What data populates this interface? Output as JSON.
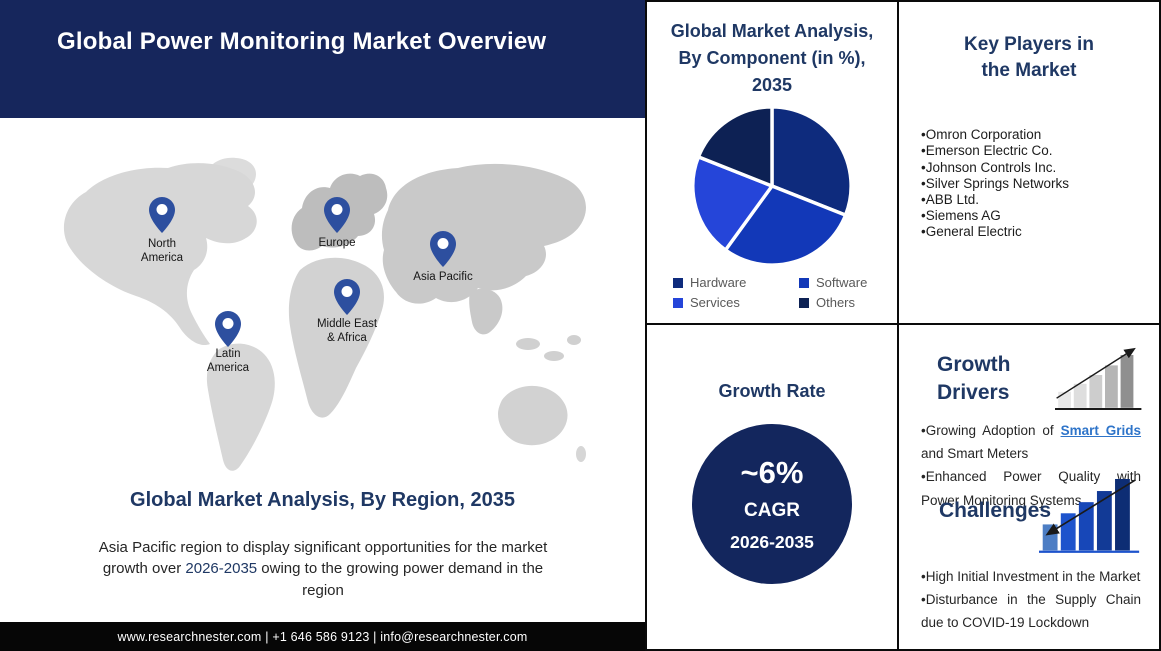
{
  "header": {
    "title": "Global Power Monitoring Market Overview"
  },
  "map": {
    "regions": [
      {
        "lines": [
          "North",
          "America"
        ]
      },
      {
        "lines": [
          "Europe"
        ]
      },
      {
        "lines": [
          "Asia Pacific"
        ]
      },
      {
        "lines": [
          "Middle East",
          "& Africa"
        ]
      },
      {
        "lines": [
          "Latin",
          "America"
        ]
      }
    ]
  },
  "region_section": {
    "heading": "Global Market Analysis, By Region, 2035",
    "description": {
      "before": "Asia Pacific region to display significant opportunities for the market growth over ",
      "highlight": "2026-2035",
      "after": " owing to the growing power demand in the region"
    }
  },
  "footer": {
    "text": "www.researchnester.com | +1 646 586 9123 | info@researchnester.com"
  },
  "component_section": {
    "title_lines": [
      "Global Market Analysis,",
      "By Component (in %),",
      "2035"
    ]
  },
  "chart_data": {
    "type": "pie",
    "title": "Global Market Analysis, By Component (in %), 2035",
    "categories": [
      "Hardware",
      "Software",
      "Services",
      "Others"
    ],
    "values": [
      31,
      29,
      21,
      19
    ],
    "colors": [
      "#0e2b7d",
      "#1238b8",
      "#2545d9",
      "#0d2154"
    ],
    "start_angle_deg": 0,
    "direction": "clockwise",
    "legend_position": "bottom"
  },
  "growth_rate": {
    "heading": "Growth Rate",
    "value": "~6%",
    "metric": "CAGR",
    "period": "2026-2035"
  },
  "key_players": {
    "heading_lines": [
      "Key Players in",
      "the Market"
    ],
    "bullet": "•",
    "items": [
      "Omron Corporation",
      "Emerson Electric Co.",
      "Johnson Controls Inc.",
      "Silver Springs Networks",
      "ABB Ltd.",
      "Siemens AG",
      "General Electric"
    ]
  },
  "growth_drivers": {
    "heading_lines": [
      "Growth",
      "Drivers"
    ],
    "bullet1": {
      "before": "•Growing Adoption of ",
      "link": "Smart Grids",
      "after": " and Smart Meters"
    },
    "bullet2": "•Enhanced Power Quality with Power Monitoring Systems",
    "icon": {
      "bar_colors": [
        "#e8e8e8",
        "#dedede",
        "#cdcdcd",
        "#b5b5b5",
        "#8f8f8f"
      ],
      "axis_color": "#1a1a1a",
      "arrow_color": "#1a1a1a",
      "trend": "up"
    }
  },
  "challenges": {
    "heading": "Challenges",
    "bullet1": "•High Initial Investment in the Market",
    "bullet2": "•Disturbance in the Supply Chain due to COVID-19 Lockdown",
    "icon": {
      "bar_colors": [
        "#4d7ec4",
        "#1d53cc",
        "#1747b8",
        "#123a96",
        "#0d2d74"
      ],
      "axis_color": "#1d53cc",
      "arrow_color": "#1a1a1a",
      "trend": "down"
    }
  },
  "colors": {
    "header_bg": "#16265c",
    "heading_text": "#1f3864",
    "circle_bg": "#13265d",
    "link": "#2e74c9",
    "pin": "#2d4f9f",
    "footer_bg": "#060606"
  }
}
